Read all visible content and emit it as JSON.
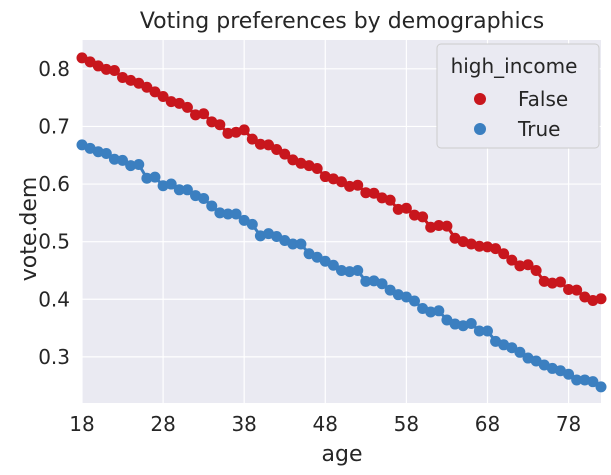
{
  "chart_data": {
    "type": "line",
    "title": "Voting preferences by demographics",
    "xlabel": "age",
    "ylabel": "vote.dem",
    "xlim": [
      18,
      82
    ],
    "ylim": [
      0.22,
      0.85
    ],
    "xticks": [
      18,
      28,
      38,
      48,
      58,
      68,
      78
    ],
    "yticks": [
      0.3,
      0.4,
      0.5,
      0.6,
      0.7,
      0.8
    ],
    "xtick_labels": [
      "18",
      "28",
      "38",
      "48",
      "58",
      "68",
      "78"
    ],
    "ytick_labels": [
      "0.3",
      "0.4",
      "0.5",
      "0.6",
      "0.7",
      "0.8"
    ],
    "grid": true,
    "legend": {
      "title": "high_income",
      "placement": "top-right",
      "entries": [
        "False",
        "True"
      ]
    },
    "x": [
      18,
      19,
      20,
      21,
      22,
      23,
      24,
      25,
      26,
      27,
      28,
      29,
      30,
      31,
      32,
      33,
      34,
      35,
      36,
      37,
      38,
      39,
      40,
      41,
      42,
      43,
      44,
      45,
      46,
      47,
      48,
      49,
      50,
      51,
      52,
      53,
      54,
      55,
      56,
      57,
      58,
      59,
      60,
      61,
      62,
      63,
      64,
      65,
      66,
      67,
      68,
      69,
      70,
      71,
      72,
      73,
      74,
      75,
      76,
      77,
      78,
      79,
      80,
      81,
      82
    ],
    "series": [
      {
        "name": "False",
        "color": "#c8161d",
        "values": [
          0.819,
          0.812,
          0.805,
          0.799,
          0.797,
          0.785,
          0.78,
          0.775,
          0.768,
          0.76,
          0.752,
          0.743,
          0.74,
          0.733,
          0.72,
          0.722,
          0.708,
          0.703,
          0.688,
          0.69,
          0.694,
          0.678,
          0.669,
          0.668,
          0.66,
          0.652,
          0.642,
          0.636,
          0.632,
          0.627,
          0.613,
          0.609,
          0.604,
          0.596,
          0.598,
          0.585,
          0.584,
          0.576,
          0.572,
          0.556,
          0.558,
          0.546,
          0.543,
          0.525,
          0.528,
          0.527,
          0.506,
          0.5,
          0.496,
          0.492,
          0.491,
          0.488,
          0.479,
          0.468,
          0.458,
          0.46,
          0.45,
          0.431,
          0.428,
          0.43,
          0.417,
          0.416,
          0.404,
          0.398,
          0.401
        ]
      },
      {
        "name": "True",
        "color": "#3b7fc0",
        "values": [
          0.668,
          0.662,
          0.656,
          0.653,
          0.643,
          0.641,
          0.632,
          0.634,
          0.61,
          0.612,
          0.597,
          0.6,
          0.59,
          0.59,
          0.58,
          0.575,
          0.562,
          0.55,
          0.548,
          0.548,
          0.537,
          0.53,
          0.51,
          0.514,
          0.509,
          0.502,
          0.496,
          0.496,
          0.479,
          0.473,
          0.466,
          0.459,
          0.45,
          0.448,
          0.45,
          0.431,
          0.432,
          0.427,
          0.416,
          0.408,
          0.404,
          0.397,
          0.384,
          0.378,
          0.38,
          0.364,
          0.357,
          0.354,
          0.358,
          0.345,
          0.345,
          0.327,
          0.321,
          0.316,
          0.308,
          0.298,
          0.293,
          0.286,
          0.28,
          0.276,
          0.27,
          0.26,
          0.26,
          0.257,
          0.248
        ]
      }
    ]
  }
}
